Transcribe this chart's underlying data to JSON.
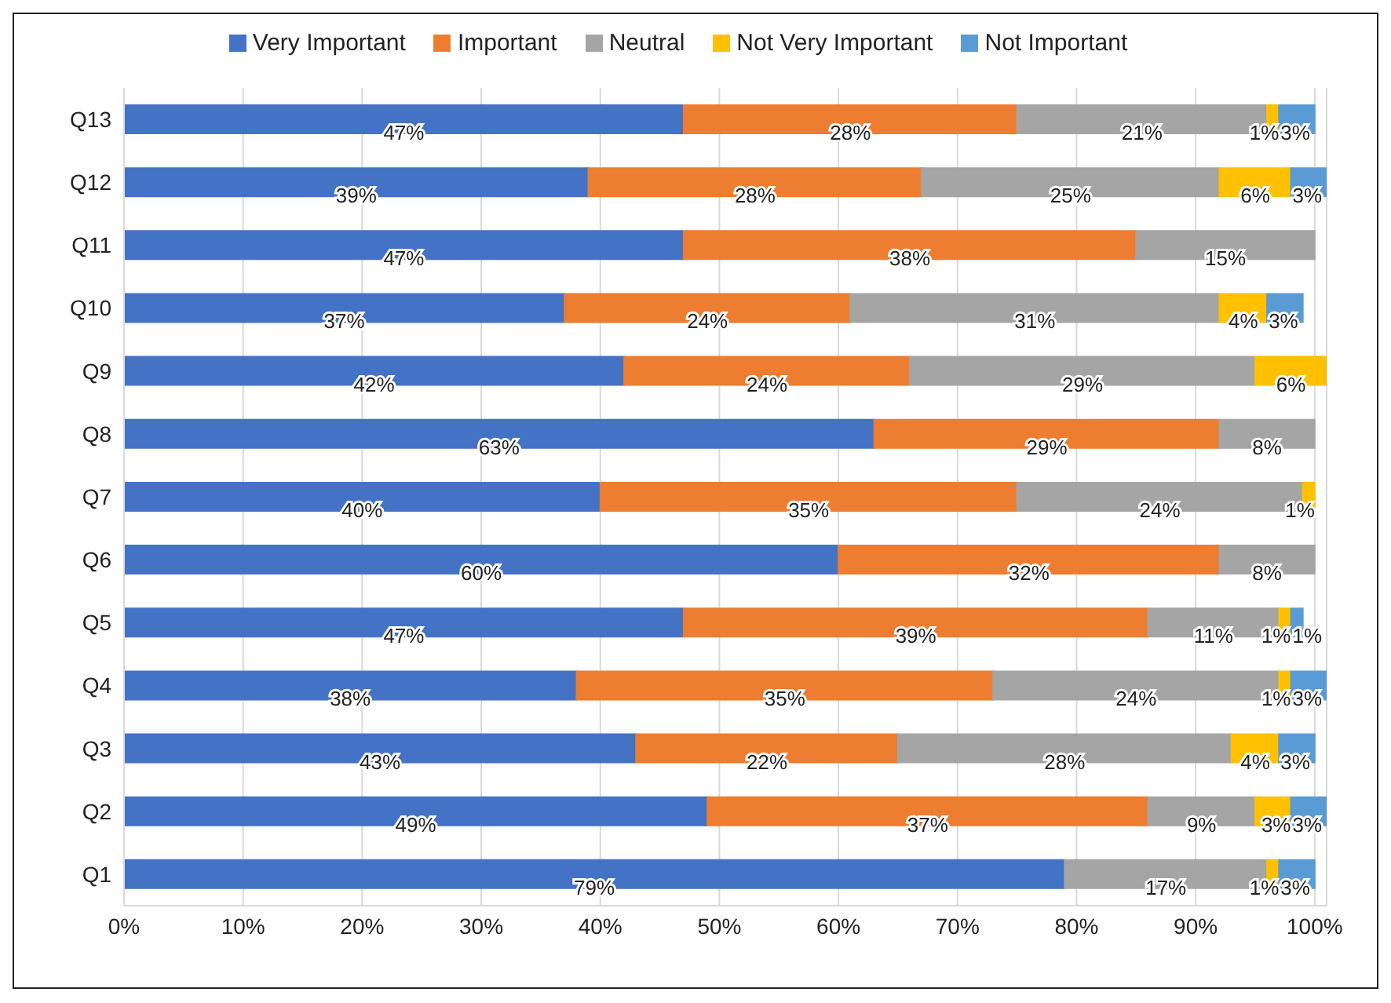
{
  "chart_data": {
    "type": "bar",
    "orientation": "horizontal",
    "stacked": true,
    "categories": [
      "Q13",
      "Q12",
      "Q11",
      "Q10",
      "Q9",
      "Q8",
      "Q7",
      "Q6",
      "Q5",
      "Q4",
      "Q3",
      "Q2",
      "Q1"
    ],
    "series": [
      {
        "name": "Very Important",
        "color": "#4472c4",
        "values": [
          47,
          39,
          47,
          37,
          42,
          63,
          40,
          60,
          47,
          38,
          43,
          49,
          79
        ],
        "value_labels": [
          "47%",
          "39%",
          "47%",
          "37%",
          "42%",
          "63%",
          "40%",
          "60%",
          "47%",
          "38%",
          "43%",
          "49%",
          "79%"
        ]
      },
      {
        "name": "Important",
        "color": "#ed7d31",
        "values": [
          28,
          28,
          38,
          24,
          24,
          29,
          35,
          32,
          39,
          35,
          22,
          37,
          null
        ],
        "value_labels": [
          "28%",
          "28%",
          "38%",
          "24%",
          "24%",
          "29%",
          "35%",
          "32%",
          "39%",
          "35%",
          "22%",
          "37%",
          null
        ]
      },
      {
        "name": "Neutral",
        "color": "#a5a5a5",
        "values": [
          21,
          25,
          15,
          31,
          29,
          8,
          24,
          8,
          11,
          24,
          28,
          9,
          17
        ],
        "value_labels": [
          "21%",
          "25%",
          "15%",
          "31%",
          "29%",
          "8%",
          "24%",
          "8%",
          "11%",
          "24%",
          "28%",
          "9%",
          "17%"
        ]
      },
      {
        "name": "Not Very Important",
        "color": "#ffc000",
        "values": [
          1,
          6,
          null,
          4,
          6,
          null,
          1,
          null,
          1,
          1,
          4,
          3,
          1
        ],
        "value_labels": [
          "1%",
          "6%",
          null,
          "4%",
          "6%",
          null,
          "1%",
          null,
          "1%",
          "1%",
          "4%",
          "3%",
          "1%"
        ]
      },
      {
        "name": "Not Important",
        "color": "#5b9bd5",
        "values": [
          3,
          3,
          null,
          3,
          null,
          null,
          null,
          null,
          1,
          3,
          3,
          3,
          3
        ],
        "value_labels": [
          "3%",
          "3%",
          null,
          "3%",
          null,
          null,
          null,
          null,
          "1%",
          "3%",
          "3%",
          "3%",
          "3%"
        ]
      }
    ],
    "xlim": [
      0,
      101
    ],
    "xticks": [
      {
        "value": 0,
        "label": "0%"
      },
      {
        "value": 10,
        "label": "10%"
      },
      {
        "value": 20,
        "label": "20%"
      },
      {
        "value": 30,
        "label": "30%"
      },
      {
        "value": 40,
        "label": "40%"
      },
      {
        "value": 50,
        "label": "50%"
      },
      {
        "value": 60,
        "label": "60%"
      },
      {
        "value": 70,
        "label": "70%"
      },
      {
        "value": 80,
        "label": "80%"
      },
      {
        "value": 90,
        "label": "90%"
      },
      {
        "value": 100,
        "label": "100%"
      }
    ],
    "grid": "x",
    "legend": "top"
  }
}
